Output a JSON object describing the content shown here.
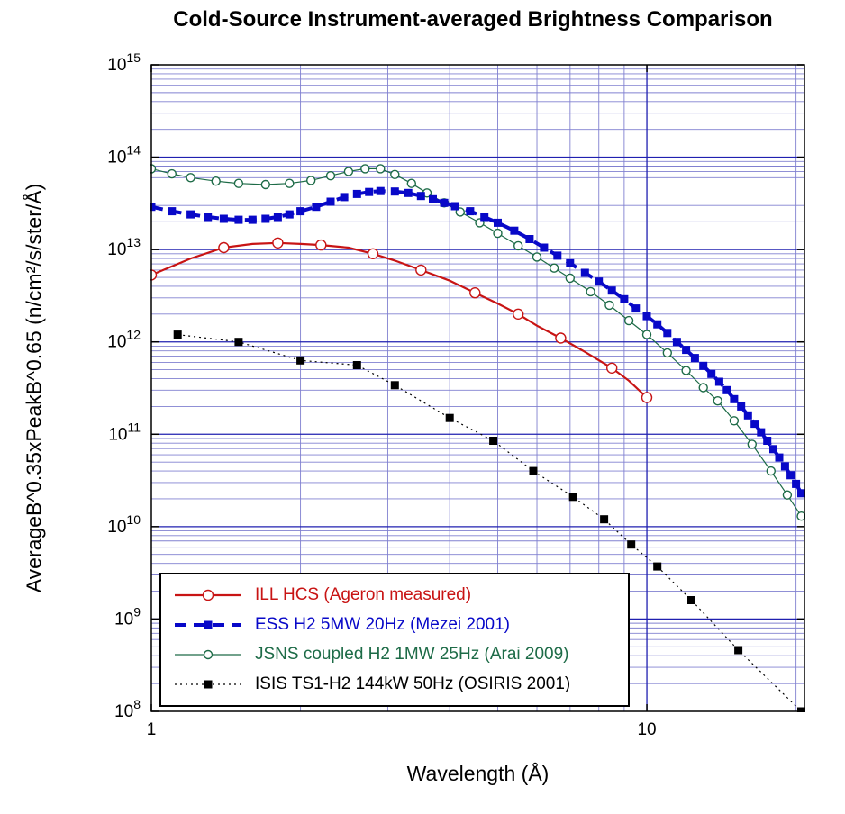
{
  "chart_data": {
    "type": "line",
    "title": "Cold-Source Instrument-averaged Brightness Comparison",
    "xlabel": "Wavelength (Å)",
    "ylabel": "AverageB^0.35xPeakB^0.65 (n/cm²/s/ster/Å)",
    "x_scale": "log",
    "y_scale": "log",
    "x_range": [
      1,
      20.8
    ],
    "y_range": [
      8,
      15
    ],
    "x_ticks": [
      1,
      10
    ],
    "y_ticks": [
      8,
      9,
      10,
      11,
      12,
      13,
      14,
      15
    ],
    "grid": {
      "major_color": "#2020b0",
      "minor_color": "#8080d0"
    },
    "legend_position": "lower-left",
    "series": [
      {
        "id": "ill",
        "name": "ILL HCS (Ageron measured)",
        "color": "#c81414",
        "line": "solid",
        "line_width": 2.2,
        "marker": "circle-open",
        "marker_size": 11,
        "marker_every": 2,
        "x": [
          1,
          1.2,
          1.4,
          1.6,
          1.8,
          2,
          2.2,
          2.5,
          2.8,
          3.1,
          3.5,
          4,
          4.5,
          5,
          5.5,
          6,
          6.7,
          7.5,
          8.5,
          9.2,
          10
        ],
        "y": [
          5300000000000.0,
          8000000000000.0,
          10500000000000.0,
          11500000000000.0,
          11800000000000.0,
          11500000000000.0,
          11200000000000.0,
          10500000000000.0,
          9000000000000.0,
          7600000000000.0,
          6000000000000.0,
          4600000000000.0,
          3400000000000.0,
          2600000000000.0,
          2000000000000.0,
          1500000000000.0,
          1100000000000.0,
          780000000000.0,
          520000000000.0,
          380000000000.0,
          250000000000.0
        ]
      },
      {
        "id": "ess",
        "name": "ESS H2 5MW 20Hz (Mezei 2001)",
        "color": "#0808c8",
        "line": "dashed",
        "line_width": 4,
        "marker": "square-filled",
        "marker_size": 9,
        "marker_every": 1,
        "x": [
          1,
          1.1,
          1.2,
          1.3,
          1.4,
          1.5,
          1.6,
          1.7,
          1.8,
          1.9,
          2,
          2.15,
          2.3,
          2.45,
          2.6,
          2.75,
          2.9,
          3.1,
          3.3,
          3.5,
          3.7,
          3.9,
          4.1,
          4.4,
          4.7,
          5,
          5.4,
          5.8,
          6.2,
          6.6,
          7,
          7.5,
          8,
          8.5,
          9,
          9.5,
          10,
          10.5,
          11,
          11.5,
          12,
          12.5,
          13,
          13.5,
          14,
          14.5,
          15,
          15.5,
          16,
          16.5,
          17,
          17.5,
          18,
          18.5,
          19,
          19.5,
          20,
          20.5
        ],
        "y": [
          29000000000000.0,
          26000000000000.0,
          24000000000000.0,
          22500000000000.0,
          21500000000000.0,
          21000000000000.0,
          21000000000000.0,
          21500000000000.0,
          22500000000000.0,
          24000000000000.0,
          26000000000000.0,
          29000000000000.0,
          33000000000000.0,
          37000000000000.0,
          40000000000000.0,
          42000000000000.0,
          43000000000000.0,
          42500000000000.0,
          41000000000000.0,
          38000000000000.0,
          35000000000000.0,
          32000000000000.0,
          29500000000000.0,
          26000000000000.0,
          22500000000000.0,
          19500000000000.0,
          16000000000000.0,
          13000000000000.0,
          10500000000000.0,
          8600000000000.0,
          7100000000000.0,
          5600000000000.0,
          4500000000000.0,
          3600000000000.0,
          2900000000000.0,
          2300000000000.0,
          1900000000000.0,
          1550000000000.0,
          1250000000000.0,
          1000000000000.0,
          820000000000.0,
          670000000000.0,
          550000000000.0,
          450000000000.0,
          370000000000.0,
          300000000000.0,
          240000000000.0,
          200000000000.0,
          160000000000.0,
          130000000000.0,
          105000000000.0,
          85000000000.0,
          69000000000.0,
          56000000000.0,
          45000000000.0,
          36000000000.0,
          29000000000.0,
          23000000000.0
        ]
      },
      {
        "id": "jsns",
        "name": "JSNS coupled H2 1MW 25Hz (Arai 2009)",
        "color": "#1d6b47",
        "line": "solid",
        "line_width": 1.2,
        "marker": "circle-open",
        "marker_size": 9,
        "marker_every": 1,
        "x": [
          1,
          1.1,
          1.2,
          1.35,
          1.5,
          1.7,
          1.9,
          2.1,
          2.3,
          2.5,
          2.7,
          2.9,
          3.1,
          3.35,
          3.6,
          3.9,
          4.2,
          4.6,
          5,
          5.5,
          6,
          6.5,
          7,
          7.7,
          8.4,
          9.2,
          10,
          11,
          12,
          13,
          13.9,
          15,
          16.3,
          17.8,
          19.2,
          20.5
        ],
        "y": [
          75000000000000.0,
          66000000000000.0,
          60000000000000.0,
          55000000000000.0,
          52000000000000.0,
          50500000000000.0,
          52000000000000.0,
          56000000000000.0,
          63000000000000.0,
          70000000000000.0,
          75000000000000.0,
          75000000000000.0,
          65000000000000.0,
          52000000000000.0,
          41000000000000.0,
          32000000000000.0,
          25500000000000.0,
          19500000000000.0,
          15000000000000.0,
          11000000000000.0,
          8300000000000.0,
          6300000000000.0,
          4900000000000.0,
          3500000000000.0,
          2500000000000.0,
          1700000000000.0,
          1200000000000.0,
          760000000000.0,
          490000000000.0,
          320000000000.0,
          230000000000.0,
          140000000000.0,
          78000000000.0,
          40000000000.0,
          22000000000.0,
          13000000000.0
        ]
      },
      {
        "id": "isis",
        "name": "ISIS TS1-H2 144kW 50Hz (OSIRIS 2001)",
        "color": "#000000",
        "line": "dotted",
        "line_width": 1.2,
        "marker": "square-filled",
        "marker_size": 9,
        "marker_every": 1,
        "x": [
          1.13,
          1.5,
          2,
          2.6,
          3.1,
          4,
          4.9,
          5.9,
          7.1,
          8.2,
          9.3,
          10.5,
          12.3,
          15.3,
          20.5
        ],
        "y": [
          1200000000000.0,
          1000000000000.0,
          630000000000.0,
          560000000000.0,
          340000000000.0,
          150000000000.0,
          85000000000.0,
          40000000000.0,
          21000000000.0,
          12000000000.0,
          6400000000.0,
          3700000000.0,
          1600000000.0,
          460000000.0,
          100000000.0
        ]
      }
    ]
  }
}
